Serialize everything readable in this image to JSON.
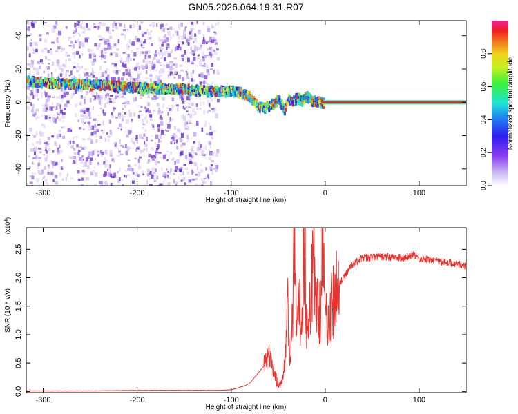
{
  "title": "GN05.2026.064.19.31.R07",
  "colorbar": {
    "label": "Normalized spectral amplitude",
    "ticks": [
      "0.0",
      "0.2",
      "0.4",
      "0.6",
      "0.8"
    ]
  },
  "chart_data": [
    {
      "type": "heatmap",
      "xlabel": "Height of straight line (km)",
      "ylabel": "Frequency (Hz)",
      "xlim": [
        -318,
        150
      ],
      "ylim": [
        -50,
        49
      ],
      "xticks": [
        -300,
        -200,
        -100,
        0,
        100
      ],
      "xtick_labels": [
        "-300",
        "-200",
        "-100",
        "0",
        "100"
      ],
      "yticks": [
        -40,
        -20,
        0,
        20,
        40
      ],
      "ytick_labels": [
        "-40",
        "-20",
        "0",
        "20",
        "40"
      ],
      "dominant_frequency_trace": {
        "x": [
          -318,
          -300,
          -250,
          -200,
          -150,
          -120,
          -100,
          -90,
          -80,
          -72,
          -65,
          -58,
          -50,
          -44,
          -40,
          -35,
          -30,
          -25,
          -20,
          -15,
          -10,
          0,
          50,
          100,
          150
        ],
        "y": [
          13,
          12,
          11,
          9,
          8,
          7,
          7,
          6,
          3,
          -2,
          -3,
          -1,
          2,
          -5,
          3,
          1,
          3,
          1,
          4,
          1,
          0.5,
          0,
          0,
          0,
          0
        ]
      },
      "noise_region_x": [
        -318,
        -115
      ],
      "grid": false
    },
    {
      "type": "line",
      "xlabel": "Height of straight line (km)",
      "ylabel": "SNR (10 * v/v)",
      "y_multiplier_label": "(x10",
      "y_multiplier_exp": "4",
      "y_multiplier_close": ")",
      "xlim": [
        -318,
        150
      ],
      "ylim": [
        -0.02,
        2.88
      ],
      "xticks": [
        -300,
        -200,
        -100,
        0,
        100
      ],
      "xtick_labels": [
        "-300",
        "-200",
        "-100",
        "0",
        "100"
      ],
      "yticks": [
        0.0,
        0.5,
        1.0,
        1.5,
        2.0,
        2.5
      ],
      "ytick_labels": [
        "0.0",
        "0.5",
        "1.0",
        "1.5",
        "2.0",
        "2.5"
      ],
      "color": "#e8332f",
      "x": [
        -318,
        -250,
        -200,
        -150,
        -110,
        -100,
        -95,
        -90,
        -85,
        -80,
        -75,
        -70,
        -65,
        -60,
        -55,
        -50,
        -47,
        -45,
        -42,
        -40,
        -38,
        -35,
        -33,
        -30,
        -28,
        -25,
        -22,
        -20,
        -18,
        -15,
        -12,
        -10,
        -8,
        -5,
        -3,
        0,
        5,
        10,
        15,
        20,
        25,
        30,
        35,
        40,
        50,
        60,
        70,
        80,
        90,
        95,
        100,
        110,
        120,
        130,
        140,
        150
      ],
      "y": [
        0.01,
        0.01,
        0.02,
        0.02,
        0.02,
        0.03,
        0.05,
        0.08,
        0.1,
        0.15,
        0.25,
        0.35,
        0.45,
        0.6,
        0.4,
        0.1,
        0.05,
        0.3,
        0.8,
        1.6,
        0.6,
        1.2,
        2.4,
        0.9,
        1.5,
        1.2,
        2.9,
        1.3,
        0.9,
        1.7,
        2.8,
        1.2,
        1.8,
        1.3,
        2.8,
        1.3,
        1.4,
        1.6,
        1.9,
        2.0,
        2.15,
        2.25,
        2.3,
        2.35,
        2.36,
        2.37,
        2.36,
        2.35,
        2.37,
        2.4,
        2.33,
        2.32,
        2.3,
        2.27,
        2.25,
        2.2
      ]
    }
  ]
}
